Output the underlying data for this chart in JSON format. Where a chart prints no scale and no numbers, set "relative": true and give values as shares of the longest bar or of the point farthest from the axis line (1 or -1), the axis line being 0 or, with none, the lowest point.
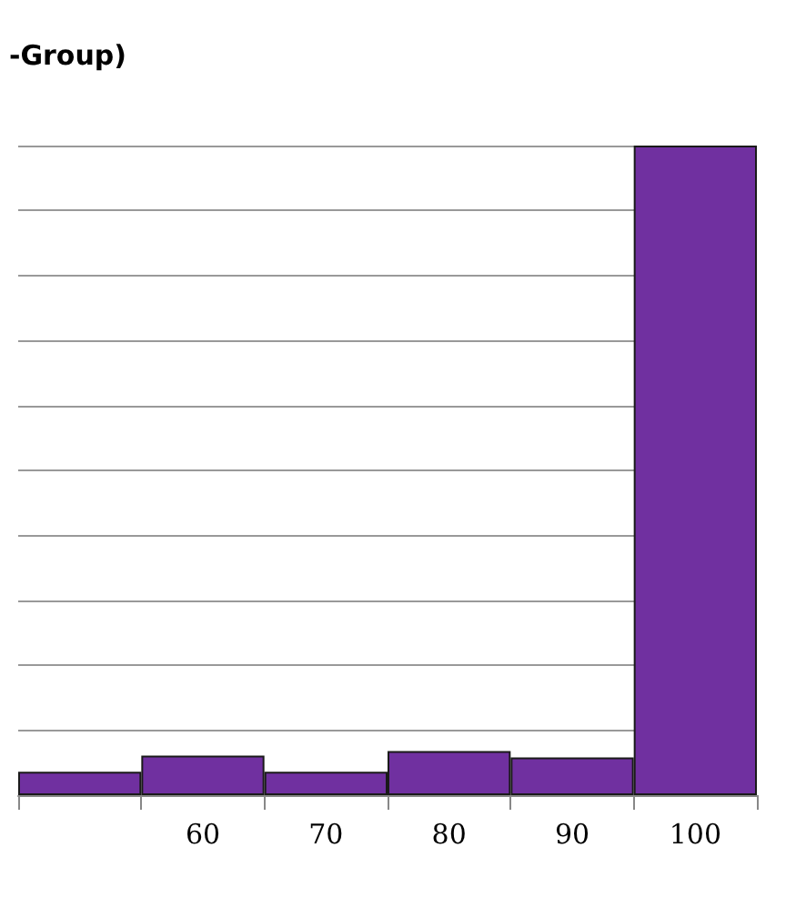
{
  "chart_data": {
    "type": "bar",
    "title": "-Group)",
    "categories": [
      null,
      "60",
      "70",
      "80",
      "90",
      "100"
    ],
    "values": [
      0.036,
      0.061,
      0.036,
      0.068,
      0.058,
      1
    ],
    "color": "#7030a0",
    "relative": true,
    "grid": "y"
  }
}
